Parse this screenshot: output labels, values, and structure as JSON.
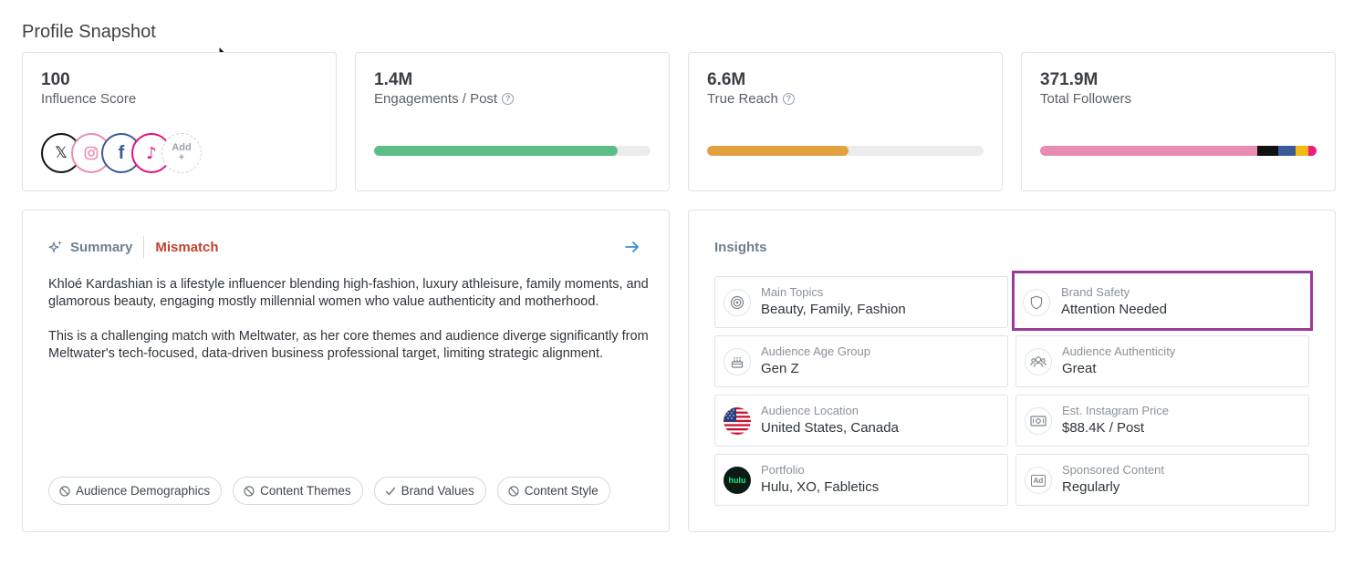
{
  "page": {
    "title": "Profile Snapshot"
  },
  "stats": [
    {
      "value": "100",
      "label": "Influence Score",
      "help": false
    },
    {
      "value": "1.4M",
      "label": "Engagements / Post",
      "help": true,
      "progress": 0.88,
      "color": "#5dbd86"
    },
    {
      "value": "6.6M",
      "label": "True Reach",
      "help": true,
      "progress": 0.51,
      "color": "#e1a13e"
    },
    {
      "value": "371.9M",
      "label": "Total Followers",
      "help": false,
      "segments": [
        {
          "share": 0.785,
          "color": "#ea8bb3"
        },
        {
          "share": 0.075,
          "color": "#111111"
        },
        {
          "share": 0.065,
          "color": "#3b5a9a"
        },
        {
          "share": 0.045,
          "color": "#f2b90f"
        },
        {
          "share": 0.03,
          "color": "#ee1d7f"
        }
      ]
    }
  ],
  "socials": [
    {
      "icon": "x-icon",
      "glyph": "𝕏",
      "color": "#111111"
    },
    {
      "icon": "instagram-icon",
      "color": "#ec8cb4"
    },
    {
      "icon": "facebook-icon",
      "glyph": "f",
      "color": "#3b5a9a"
    },
    {
      "icon": "tiktok-icon",
      "glyph": "♪",
      "color": "#e3127a"
    },
    {
      "icon": "add-icon",
      "label": "Add",
      "plus": "+"
    }
  ],
  "summary": {
    "tab_label": "Summary",
    "match_label": "Mismatch",
    "paragraphs": [
      "Khloé Kardashian is a lifestyle influencer blending high-fashion, luxury athleisure, family moments, and glamorous beauty, engaging mostly millennial women who value authenticity and motherhood.",
      "This is a challenging match with Meltwater, as her core themes and audience diverge significantly from Meltwater's tech-focused, data-driven business professional target, limiting strategic alignment."
    ],
    "chips": [
      {
        "label": "Audience Demographics",
        "icon": "ban-icon"
      },
      {
        "label": "Content Themes",
        "icon": "ban-icon"
      },
      {
        "label": "Brand Values",
        "icon": "check-icon"
      },
      {
        "label": "Content Style",
        "icon": "ban-icon"
      }
    ]
  },
  "insights": {
    "title": "Insights",
    "items": [
      {
        "label": "Main Topics",
        "value": "Beauty, Family, Fashion",
        "icon": "target-icon"
      },
      {
        "label": "Brand Safety",
        "value": "Attention Needed",
        "icon": "shield-icon"
      },
      {
        "label": "Audience Age Group",
        "value": "Gen Z",
        "icon": "cake-icon"
      },
      {
        "label": "Audience Authenticity",
        "value": "Great",
        "icon": "users-icon"
      },
      {
        "label": "Audience Location",
        "value": "United States, Canada",
        "icon": "us-flag-icon"
      },
      {
        "label": "Est. Instagram Price",
        "value": "$88.4K / Post",
        "icon": "money-icon"
      },
      {
        "label": "Portfolio",
        "value": "Hulu, XO, Fabletics",
        "icon": "hulu-logo",
        "logo_text": "hulu"
      },
      {
        "label": "Sponsored Content",
        "value": "Regularly",
        "icon": "ad-icon",
        "badge_text": "Ad"
      }
    ]
  }
}
